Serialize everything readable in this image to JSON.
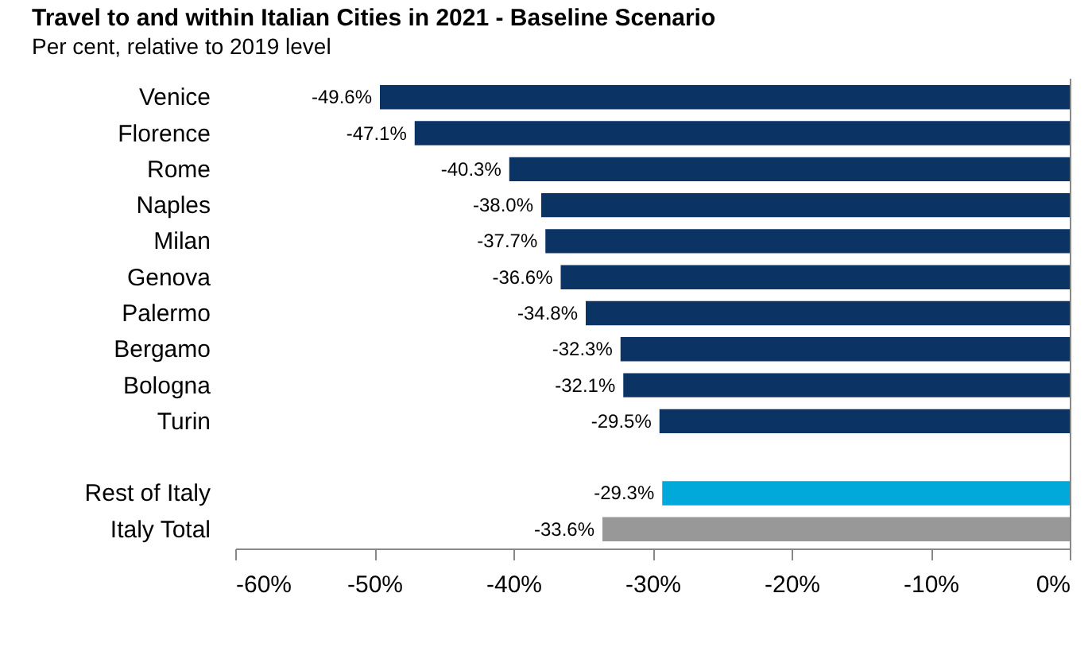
{
  "chart_data": {
    "type": "bar",
    "orientation": "horizontal",
    "title": "Travel to and within Italian Cities in 2021 - Baseline Scenario",
    "subtitle": "Per cent, relative to 2019 level",
    "categories": [
      "Venice",
      "Florence",
      "Rome",
      "Naples",
      "Milan",
      "Genova",
      "Palermo",
      "Bergamo",
      "Bologna",
      "Turin",
      null,
      "Rest of Italy",
      "Italy Total"
    ],
    "values": [
      -49.6,
      -47.1,
      -40.3,
      -38.0,
      -37.7,
      -36.6,
      -34.8,
      -32.3,
      -32.1,
      -29.5,
      null,
      -29.3,
      -33.6
    ],
    "colors": [
      "#0b3464",
      "#0b3464",
      "#0b3464",
      "#0b3464",
      "#0b3464",
      "#0b3464",
      "#0b3464",
      "#0b3464",
      "#0b3464",
      "#0b3464",
      "#0b3464",
      "#00a9da",
      "#989898"
    ],
    "value_labels": [
      "-49.6%",
      "-47.1%",
      "-40.3%",
      "-38.0%",
      "-37.7%",
      "-36.6%",
      "-34.8%",
      "-32.3%",
      "-32.1%",
      "-29.5%",
      null,
      "-29.3%",
      "-33.6%"
    ],
    "xlim": [
      -60,
      0
    ],
    "xticks": [
      {
        "value": -60,
        "label": "-60%"
      },
      {
        "value": -50,
        "label": "-50%"
      },
      {
        "value": -40,
        "label": "-40%"
      },
      {
        "value": -30,
        "label": "-30%"
      },
      {
        "value": -20,
        "label": "-20%"
      },
      {
        "value": -10,
        "label": "-10%"
      },
      {
        "value": 0,
        "label": "0%"
      }
    ],
    "grid": false,
    "legend": false
  }
}
